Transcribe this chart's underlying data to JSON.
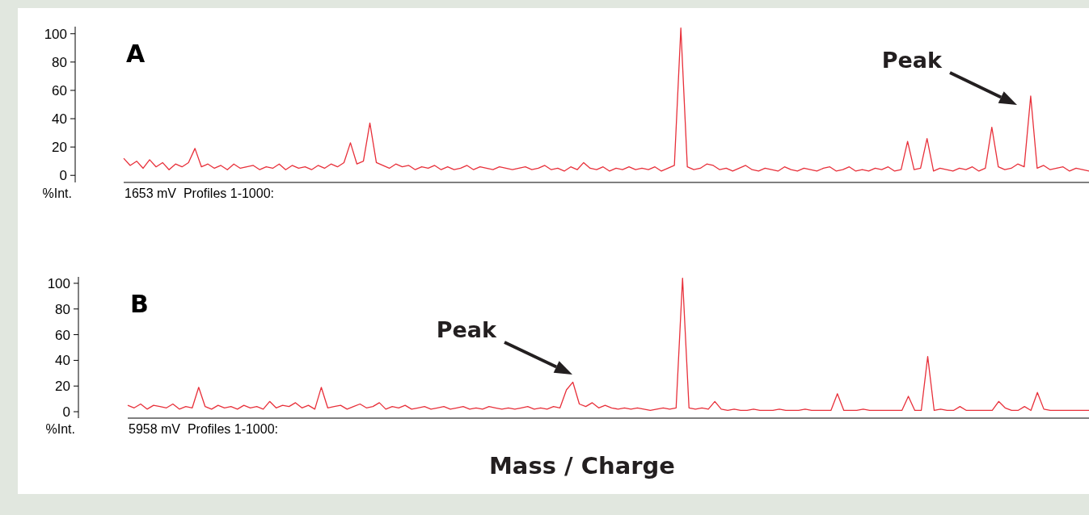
{
  "chart_data": [
    {
      "type": "line",
      "title": "A",
      "ylabel": "%Int.",
      "categories": [
        null,
        null,
        null,
        null,
        null,
        null,
        null,
        null,
        null,
        null,
        null,
        null,
        null,
        null,
        null,
        null,
        null,
        null,
        null,
        null,
        null,
        null,
        null,
        null,
        null,
        null,
        null,
        null,
        null,
        null,
        null,
        null,
        null,
        null,
        null,
        null,
        null,
        null,
        null,
        null,
        null,
        null,
        null,
        null,
        null,
        null,
        null,
        null,
        null,
        null,
        null,
        null,
        null,
        null,
        null,
        null,
        null,
        null,
        null,
        null,
        null,
        null,
        null,
        null,
        null,
        null,
        null,
        null,
        null,
        null,
        null,
        null,
        null,
        null,
        null,
        null,
        null,
        null,
        null,
        null,
        null,
        null,
        null,
        null,
        null,
        null,
        null,
        null,
        null,
        null,
        null,
        null,
        null,
        null,
        null,
        null,
        null,
        null,
        null,
        null,
        null,
        null,
        null,
        null,
        null,
        null,
        null,
        null,
        null,
        null,
        null,
        null,
        null,
        null,
        null,
        null,
        null,
        null,
        null,
        null,
        null,
        null,
        null,
        null,
        null,
        null,
        null,
        null,
        null,
        null,
        null,
        null,
        null,
        null,
        null,
        null,
        null,
        null,
        null,
        null,
        null,
        null,
        null,
        null,
        null,
        null,
        null,
        null,
        null,
        null
      ],
      "series": [
        {
          "color": "#e8303a",
          "values": [
            12,
            7,
            10,
            5,
            11,
            6,
            9,
            4,
            8,
            6,
            9,
            19,
            6,
            8,
            5,
            7,
            4,
            8,
            5,
            6,
            7,
            4,
            6,
            5,
            8,
            4,
            7,
            5,
            6,
            4,
            7,
            5,
            8,
            6,
            9,
            23,
            8,
            10,
            37,
            9,
            7,
            5,
            8,
            6,
            7,
            4,
            6,
            5,
            7,
            4,
            6,
            4,
            5,
            7,
            4,
            6,
            5,
            4,
            6,
            5,
            4,
            5,
            6,
            4,
            5,
            7,
            4,
            5,
            3,
            6,
            4,
            9,
            5,
            4,
            6,
            3,
            5,
            4,
            6,
            4,
            5,
            4,
            6,
            3,
            5,
            7,
            104,
            6,
            4,
            5,
            8,
            7,
            4,
            5,
            3,
            5,
            7,
            4,
            3,
            5,
            4,
            3,
            6,
            4,
            3,
            5,
            4,
            3,
            5,
            6,
            3,
            4,
            6,
            3,
            4,
            3,
            5,
            4,
            6,
            3,
            4,
            24,
            4,
            5,
            26,
            3,
            5,
            4,
            3,
            5,
            4,
            6,
            3,
            5,
            34,
            6,
            4,
            5,
            8,
            6,
            56,
            5,
            7,
            4,
            5,
            6,
            3,
            5,
            4,
            3
          ]
        }
      ],
      "ylim": [
        -5,
        105
      ],
      "yticks": [
        0,
        20,
        40,
        60,
        80,
        100
      ],
      "annotations": [
        "1653 mV  Profiles 1-1000:",
        "Peak"
      ]
    },
    {
      "type": "line",
      "title": "B",
      "ylabel": "%Int.",
      "xlabel": "Mass / Charge",
      "categories": [
        null,
        null,
        null,
        null,
        null,
        null,
        null,
        null,
        null,
        null,
        null,
        null,
        null,
        null,
        null,
        null,
        null,
        null,
        null,
        null,
        null,
        null,
        null,
        null,
        null,
        null,
        null,
        null,
        null,
        null,
        null,
        null,
        null,
        null,
        null,
        null,
        null,
        null,
        null,
        null,
        null,
        null,
        null,
        null,
        null,
        null,
        null,
        null,
        null,
        null,
        null,
        null,
        null,
        null,
        null,
        null,
        null,
        null,
        null,
        null,
        null,
        null,
        null,
        null,
        null,
        null,
        null,
        null,
        null,
        null,
        null,
        null,
        null,
        null,
        null,
        null,
        null,
        null,
        null,
        null,
        null,
        null,
        null,
        null,
        null,
        null,
        null,
        null,
        null,
        null,
        null,
        null,
        null,
        null,
        null,
        null,
        null,
        null,
        null,
        null,
        null,
        null,
        null,
        null,
        null,
        null,
        null,
        null,
        null,
        null,
        null,
        null,
        null,
        null,
        null,
        null,
        null,
        null,
        null,
        null,
        null,
        null,
        null,
        null,
        null,
        null,
        null,
        null,
        null,
        null,
        null,
        null,
        null,
        null,
        null,
        null,
        null,
        null,
        null,
        null,
        null,
        null,
        null,
        null,
        null,
        null,
        null,
        null,
        null,
        null
      ],
      "series": [
        {
          "color": "#e8303a",
          "values": [
            5,
            3,
            6,
            2,
            5,
            4,
            3,
            6,
            2,
            4,
            3,
            19,
            4,
            2,
            5,
            3,
            4,
            2,
            5,
            3,
            4,
            2,
            8,
            3,
            5,
            4,
            7,
            3,
            5,
            2,
            19,
            3,
            4,
            5,
            2,
            4,
            6,
            3,
            4,
            7,
            2,
            4,
            3,
            5,
            2,
            3,
            4,
            2,
            3,
            4,
            2,
            3,
            4,
            2,
            3,
            2,
            4,
            3,
            2,
            3,
            2,
            3,
            4,
            2,
            3,
            2,
            4,
            3,
            17,
            23,
            6,
            4,
            7,
            3,
            5,
            3,
            2,
            3,
            2,
            3,
            2,
            1,
            2,
            3,
            2,
            3,
            104,
            3,
            2,
            3,
            2,
            8,
            2,
            1,
            2,
            1,
            1,
            2,
            1,
            1,
            1,
            2,
            1,
            1,
            1,
            2,
            1,
            1,
            1,
            1,
            14,
            1,
            1,
            1,
            2,
            1,
            1,
            1,
            1,
            1,
            1,
            12,
            1,
            1,
            43,
            1,
            2,
            1,
            1,
            4,
            1,
            1,
            1,
            1,
            1,
            8,
            3,
            1,
            1,
            4,
            1,
            15,
            2,
            1,
            1,
            1,
            1,
            1,
            1,
            1
          ]
        }
      ],
      "ylim": [
        -5,
        105
      ],
      "yticks": [
        0,
        20,
        40,
        60,
        80,
        100
      ],
      "annotations": [
        "5958 mV  Profiles 1-1000:",
        "Peak"
      ]
    }
  ]
}
